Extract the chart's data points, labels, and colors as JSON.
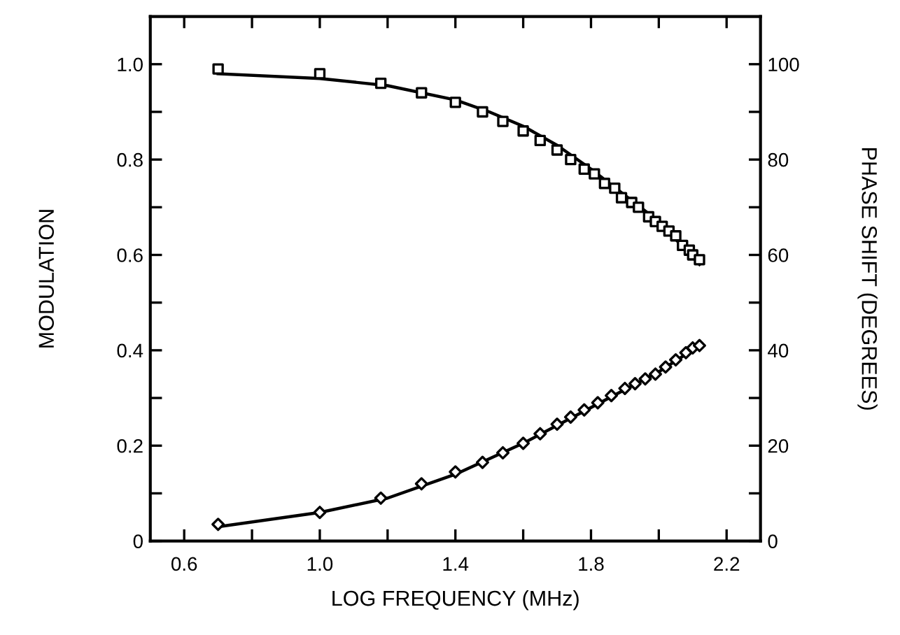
{
  "chart_data": {
    "type": "scatter",
    "xlabel": "LOG FREQUENCY (MHz)",
    "ylabel": "MODULATION",
    "y2label": "PHASE SHIFT (DEGREES)",
    "xlim": [
      0.5,
      2.3
    ],
    "xticks": [
      0.6,
      {
        "value": 0.8,
        "label": null
      },
      "1.0",
      {
        "value": 1.2,
        "label": null
      },
      1.4,
      {
        "value": 1.6,
        "label": null
      },
      1.8,
      {
        "value": 2.0,
        "label": null
      },
      2.2
    ],
    "ylim": [
      0,
      1.1
    ],
    "yticks": [
      {
        "value": 0,
        "label": "0"
      },
      {
        "value": 0.1,
        "label": null
      },
      0.2,
      {
        "value": 0.3,
        "label": null
      },
      0.4,
      {
        "value": 0.5,
        "label": null
      },
      0.6,
      {
        "value": 0.7,
        "label": null
      },
      0.8,
      {
        "value": 0.9,
        "label": null
      },
      {
        "value": 1.0,
        "label": "1.0"
      }
    ],
    "y2lim": [
      0,
      110
    ],
    "y2ticks": [
      0,
      {
        "value": 10,
        "label": null
      },
      20,
      {
        "value": 30,
        "label": null
      },
      40,
      {
        "value": 50,
        "label": null
      },
      60,
      {
        "value": 70,
        "label": null
      },
      80,
      {
        "value": 90,
        "label": null
      },
      100
    ],
    "grid": false,
    "legend": false,
    "series": [
      {
        "marker": "square",
        "color": "#000000",
        "x": [
          0.7,
          1.0,
          1.18,
          1.3,
          1.4,
          1.48,
          1.54,
          1.6,
          1.65,
          1.7,
          1.74,
          1.78,
          1.81,
          1.84,
          1.87,
          1.89,
          1.92,
          1.94,
          1.97,
          1.99,
          2.01,
          2.03,
          2.05,
          2.07,
          2.09,
          2.1,
          2.12
        ],
        "values": [
          0.99,
          0.98,
          0.96,
          0.94,
          0.92,
          0.9,
          0.88,
          0.86,
          0.84,
          0.82,
          0.8,
          0.78,
          0.77,
          0.75,
          0.74,
          0.72,
          0.71,
          0.7,
          0.68,
          0.67,
          0.66,
          0.65,
          0.64,
          0.62,
          0.61,
          0.6,
          0.59
        ]
      },
      {
        "type": "line",
        "marker": "none",
        "color": "#000000",
        "x": [
          0.7,
          1.0,
          1.2,
          1.4,
          1.5,
          1.6,
          1.7,
          1.8,
          1.9,
          2.0,
          2.12
        ],
        "values": [
          0.98,
          0.97,
          0.955,
          0.925,
          0.9,
          0.87,
          0.83,
          0.78,
          0.725,
          0.67,
          0.58
        ]
      },
      {
        "marker": "diamond",
        "axis": "y2",
        "color": "#000000",
        "x": [
          0.7,
          1.0,
          1.18,
          1.3,
          1.4,
          1.48,
          1.54,
          1.6,
          1.65,
          1.7,
          1.74,
          1.78,
          1.82,
          1.86,
          1.9,
          1.93,
          1.96,
          1.99,
          2.02,
          2.05,
          2.08,
          2.1,
          2.12
        ],
        "values": [
          3.5,
          6,
          9,
          12,
          14.5,
          16.5,
          18.5,
          20.5,
          22.5,
          24.5,
          26,
          27.5,
          29,
          30.5,
          32,
          33,
          34,
          35,
          36.5,
          38,
          39.5,
          40.5,
          41
        ]
      },
      {
        "type": "line",
        "marker": "none",
        "axis": "y2",
        "color": "#000000",
        "x": [
          0.7,
          1.0,
          1.2,
          1.4,
          1.6,
          1.8,
          2.0,
          2.12
        ],
        "values": [
          3,
          6,
          9,
          14,
          20.5,
          28,
          35.5,
          41
        ]
      }
    ]
  }
}
